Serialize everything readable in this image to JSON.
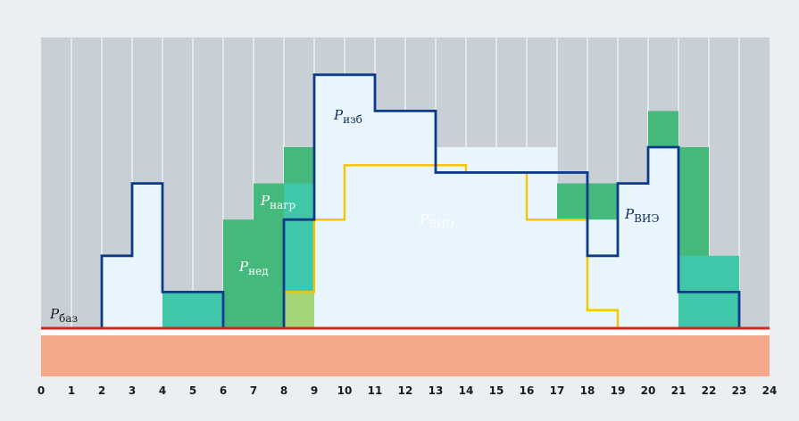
{
  "chart_data": {
    "type": "area",
    "xlim": [
      0,
      24
    ],
    "ylim": [
      -3,
      9
    ],
    "x_ticks": [
      "0",
      "1",
      "2",
      "3",
      "4",
      "5",
      "6",
      "7",
      "8",
      "9",
      "10",
      "11",
      "12",
      "13",
      "14",
      "15",
      "16",
      "17",
      "18",
      "19",
      "20",
      "21",
      "22",
      "23",
      "24"
    ],
    "grid": "vertical",
    "colors": {
      "base_band": "#f5a98a",
      "base_line": "#d9261c",
      "grid_bg": "#c8d0d6",
      "grid_line": "#ffffff",
      "ned_dark": "#45b97c",
      "ned_teal": "#40c6a9",
      "vis_fill": "#a3d679",
      "izb_fill": "#e8f5fd",
      "load_line": "#0e3a8c",
      "vis_line": "#f7c600"
    },
    "series": [
      {
        "id": "ned_dark",
        "name": "Рнед",
        "name_base": "P",
        "name_sub": "нед",
        "values": [
          0,
          0,
          0,
          0,
          0,
          0,
          3,
          4,
          5,
          0,
          0,
          0,
          5,
          0,
          0,
          0,
          0,
          4,
          4,
          0,
          6,
          5,
          0,
          0
        ]
      },
      {
        "id": "ned_teal",
        "name": "Рнагр",
        "name_base": "P",
        "name_sub": "нагр",
        "values": [
          0,
          0,
          0,
          0,
          1,
          1,
          0,
          0,
          4,
          0,
          0,
          0,
          0,
          0,
          0,
          0,
          0,
          0,
          0,
          2,
          2,
          2,
          2,
          0
        ]
      },
      {
        "id": "vis_fill",
        "name": "",
        "values": [
          0,
          0,
          0,
          0,
          0,
          0,
          0,
          0,
          1,
          2,
          1,
          1,
          6,
          5,
          1,
          1,
          1,
          3,
          0,
          0,
          0,
          0,
          0,
          0
        ]
      },
      {
        "id": "izb_fill",
        "name": "Ризб",
        "name_base": "P",
        "name_sub": "изб",
        "values": [
          0,
          0,
          2,
          4,
          0,
          0,
          0,
          0,
          0,
          7,
          7,
          6,
          6,
          5,
          5,
          5,
          5,
          3,
          3,
          4,
          5,
          0,
          0,
          0
        ]
      },
      {
        "id": "load_line",
        "name": "",
        "values": [
          0,
          0,
          2,
          4,
          1,
          1,
          0,
          0,
          3,
          7,
          7,
          6,
          6,
          4.3,
          4.3,
          4.3,
          4.3,
          4.3,
          2,
          4,
          5,
          1,
          1,
          0
        ]
      },
      {
        "id": "vis_line",
        "name": "РВИЭ",
        "name_base": "P",
        "name_sub": "ВИЭ",
        "values": [
          0,
          0,
          0,
          0,
          0,
          0,
          0,
          0,
          1,
          3,
          4.5,
          4.5,
          4.5,
          4.5,
          4.3,
          4.3,
          3,
          3,
          0.5,
          0,
          0,
          0,
          0,
          0
        ]
      }
    ],
    "base_line": {
      "name": "Рбаз",
      "name_base": "P",
      "name_sub": "баз",
      "value": 0
    }
  }
}
